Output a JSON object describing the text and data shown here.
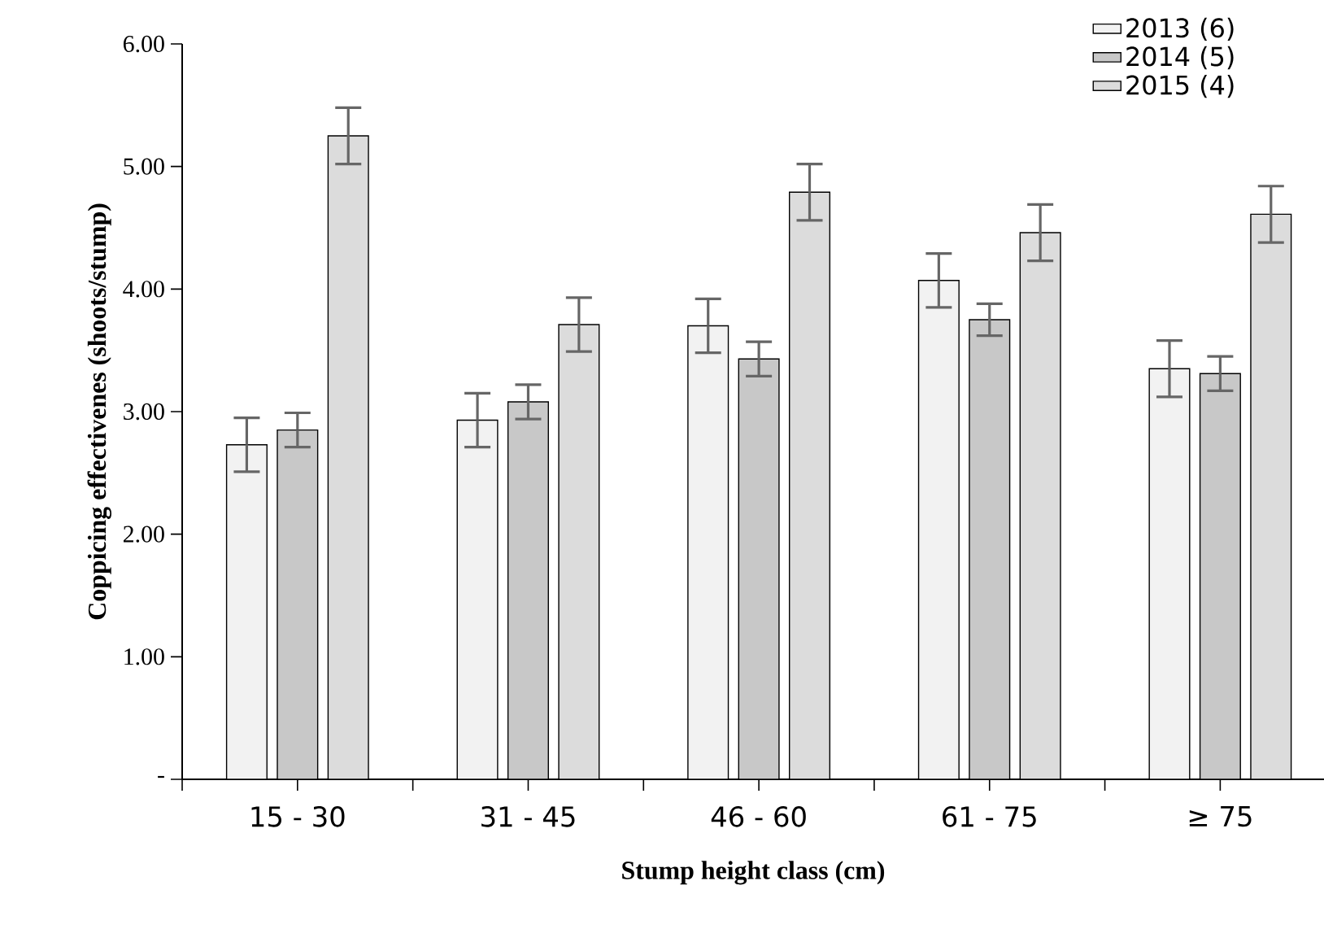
{
  "chart_data": {
    "type": "bar",
    "xlabel": "Stump height class (cm)",
    "ylabel": "Coppicing effectivenes (shoots/stump)",
    "categories": [
      "15 - 30",
      "31 - 45",
      "46 - 60",
      "61 - 75",
      "≥ 75"
    ],
    "series": [
      {
        "name": "2013 (6)",
        "color": "#f2f2f2",
        "values": [
          2.73,
          2.93,
          3.7,
          4.07,
          3.35
        ],
        "errors": [
          0.22,
          0.22,
          0.22,
          0.22,
          0.23
        ]
      },
      {
        "name": "2014 (5)",
        "color": "#c8c8c8",
        "values": [
          2.85,
          3.08,
          3.43,
          3.75,
          3.31
        ],
        "errors": [
          0.14,
          0.14,
          0.14,
          0.13,
          0.14
        ]
      },
      {
        "name": "2015 (4)",
        "color": "#dcdcdc",
        "values": [
          5.25,
          3.71,
          4.79,
          4.46,
          4.61
        ],
        "errors": [
          0.23,
          0.22,
          0.23,
          0.23,
          0.23
        ]
      }
    ],
    "ylim": [
      0,
      6
    ],
    "yticks": [
      {
        "value": 0,
        "label": "-"
      },
      {
        "value": 1,
        "label": "1.00"
      },
      {
        "value": 2,
        "label": "2.00"
      },
      {
        "value": 3,
        "label": "3.00"
      },
      {
        "value": 4,
        "label": "4.00"
      },
      {
        "value": 5,
        "label": "5.00"
      },
      {
        "value": 6,
        "label": "6.00"
      }
    ],
    "grid": false,
    "legend": "top right"
  }
}
